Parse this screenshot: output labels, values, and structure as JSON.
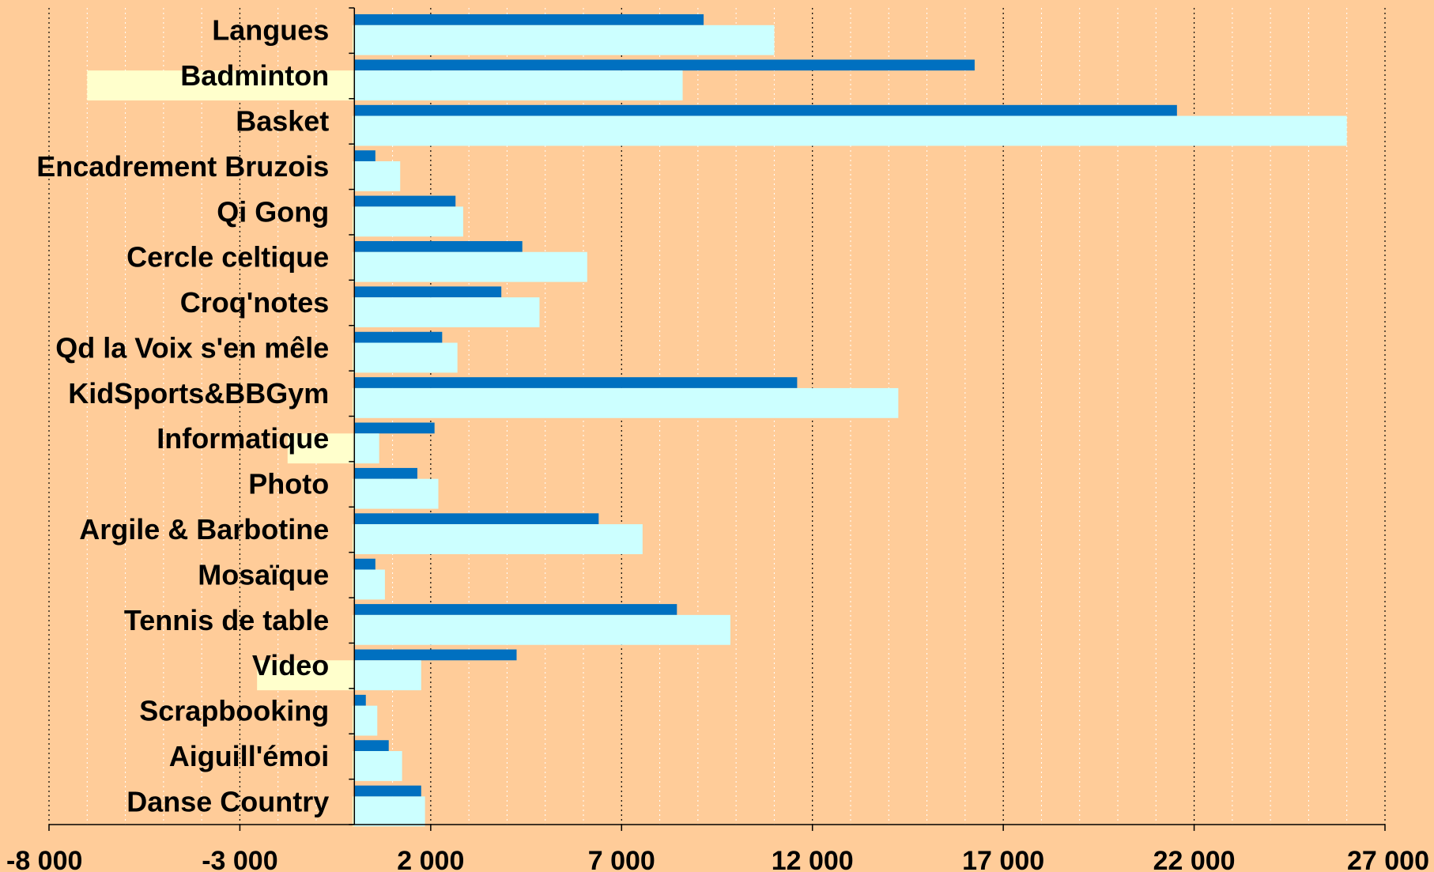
{
  "chart_data": {
    "type": "bar",
    "orientation": "horizontal",
    "categories": [
      "Langues",
      "Badminton",
      "Basket",
      "Encadrement Bruzois",
      "Qi Gong",
      "Cercle celtique",
      "Croq'notes",
      "Qd la Voix s'en mêle",
      "KidSports&BBGym",
      "Informatique",
      "Photo",
      "Argile & Barbotine",
      "Mosaïque",
      "Tennis de table",
      "Video",
      "Scrapbooking",
      "Aiguill'émoi",
      "Danse Country"
    ],
    "series": [
      {
        "color": "#0070C0",
        "values": [
          9150,
          16250,
          21550,
          550,
          2650,
          4400,
          3850,
          2300,
          11600,
          2100,
          1650,
          6400,
          550,
          8450,
          4250,
          300,
          900,
          1750
        ]
      },
      {
        "color": "#CCFFFF",
        "values": [
          11000,
          8600,
          26000,
          1200,
          2850,
          6100,
          4850,
          2700,
          14250,
          650,
          2200,
          7550,
          800,
          9850,
          1750,
          600,
          1250,
          1850
        ]
      },
      {
        "color": "#FFFFCC",
        "values": [
          -50,
          -7000,
          -50,
          -50,
          -50,
          -50,
          -50,
          -50,
          -50,
          -1750,
          -50,
          -50,
          -50,
          -50,
          -2550,
          -50,
          -50,
          -50
        ]
      }
    ],
    "xlim": [
      -8000,
      27000
    ],
    "xticks": [
      "-8 000",
      "-3 000",
      "2 000",
      "7 000",
      "12 000",
      "17 000",
      "22 000",
      "27 000"
    ],
    "xtick_values": [
      -8000,
      -3000,
      2000,
      7000,
      12000,
      17000,
      22000,
      27000
    ],
    "grid": "vertical dotted",
    "background": "#FFCC99",
    "legend": "none"
  }
}
